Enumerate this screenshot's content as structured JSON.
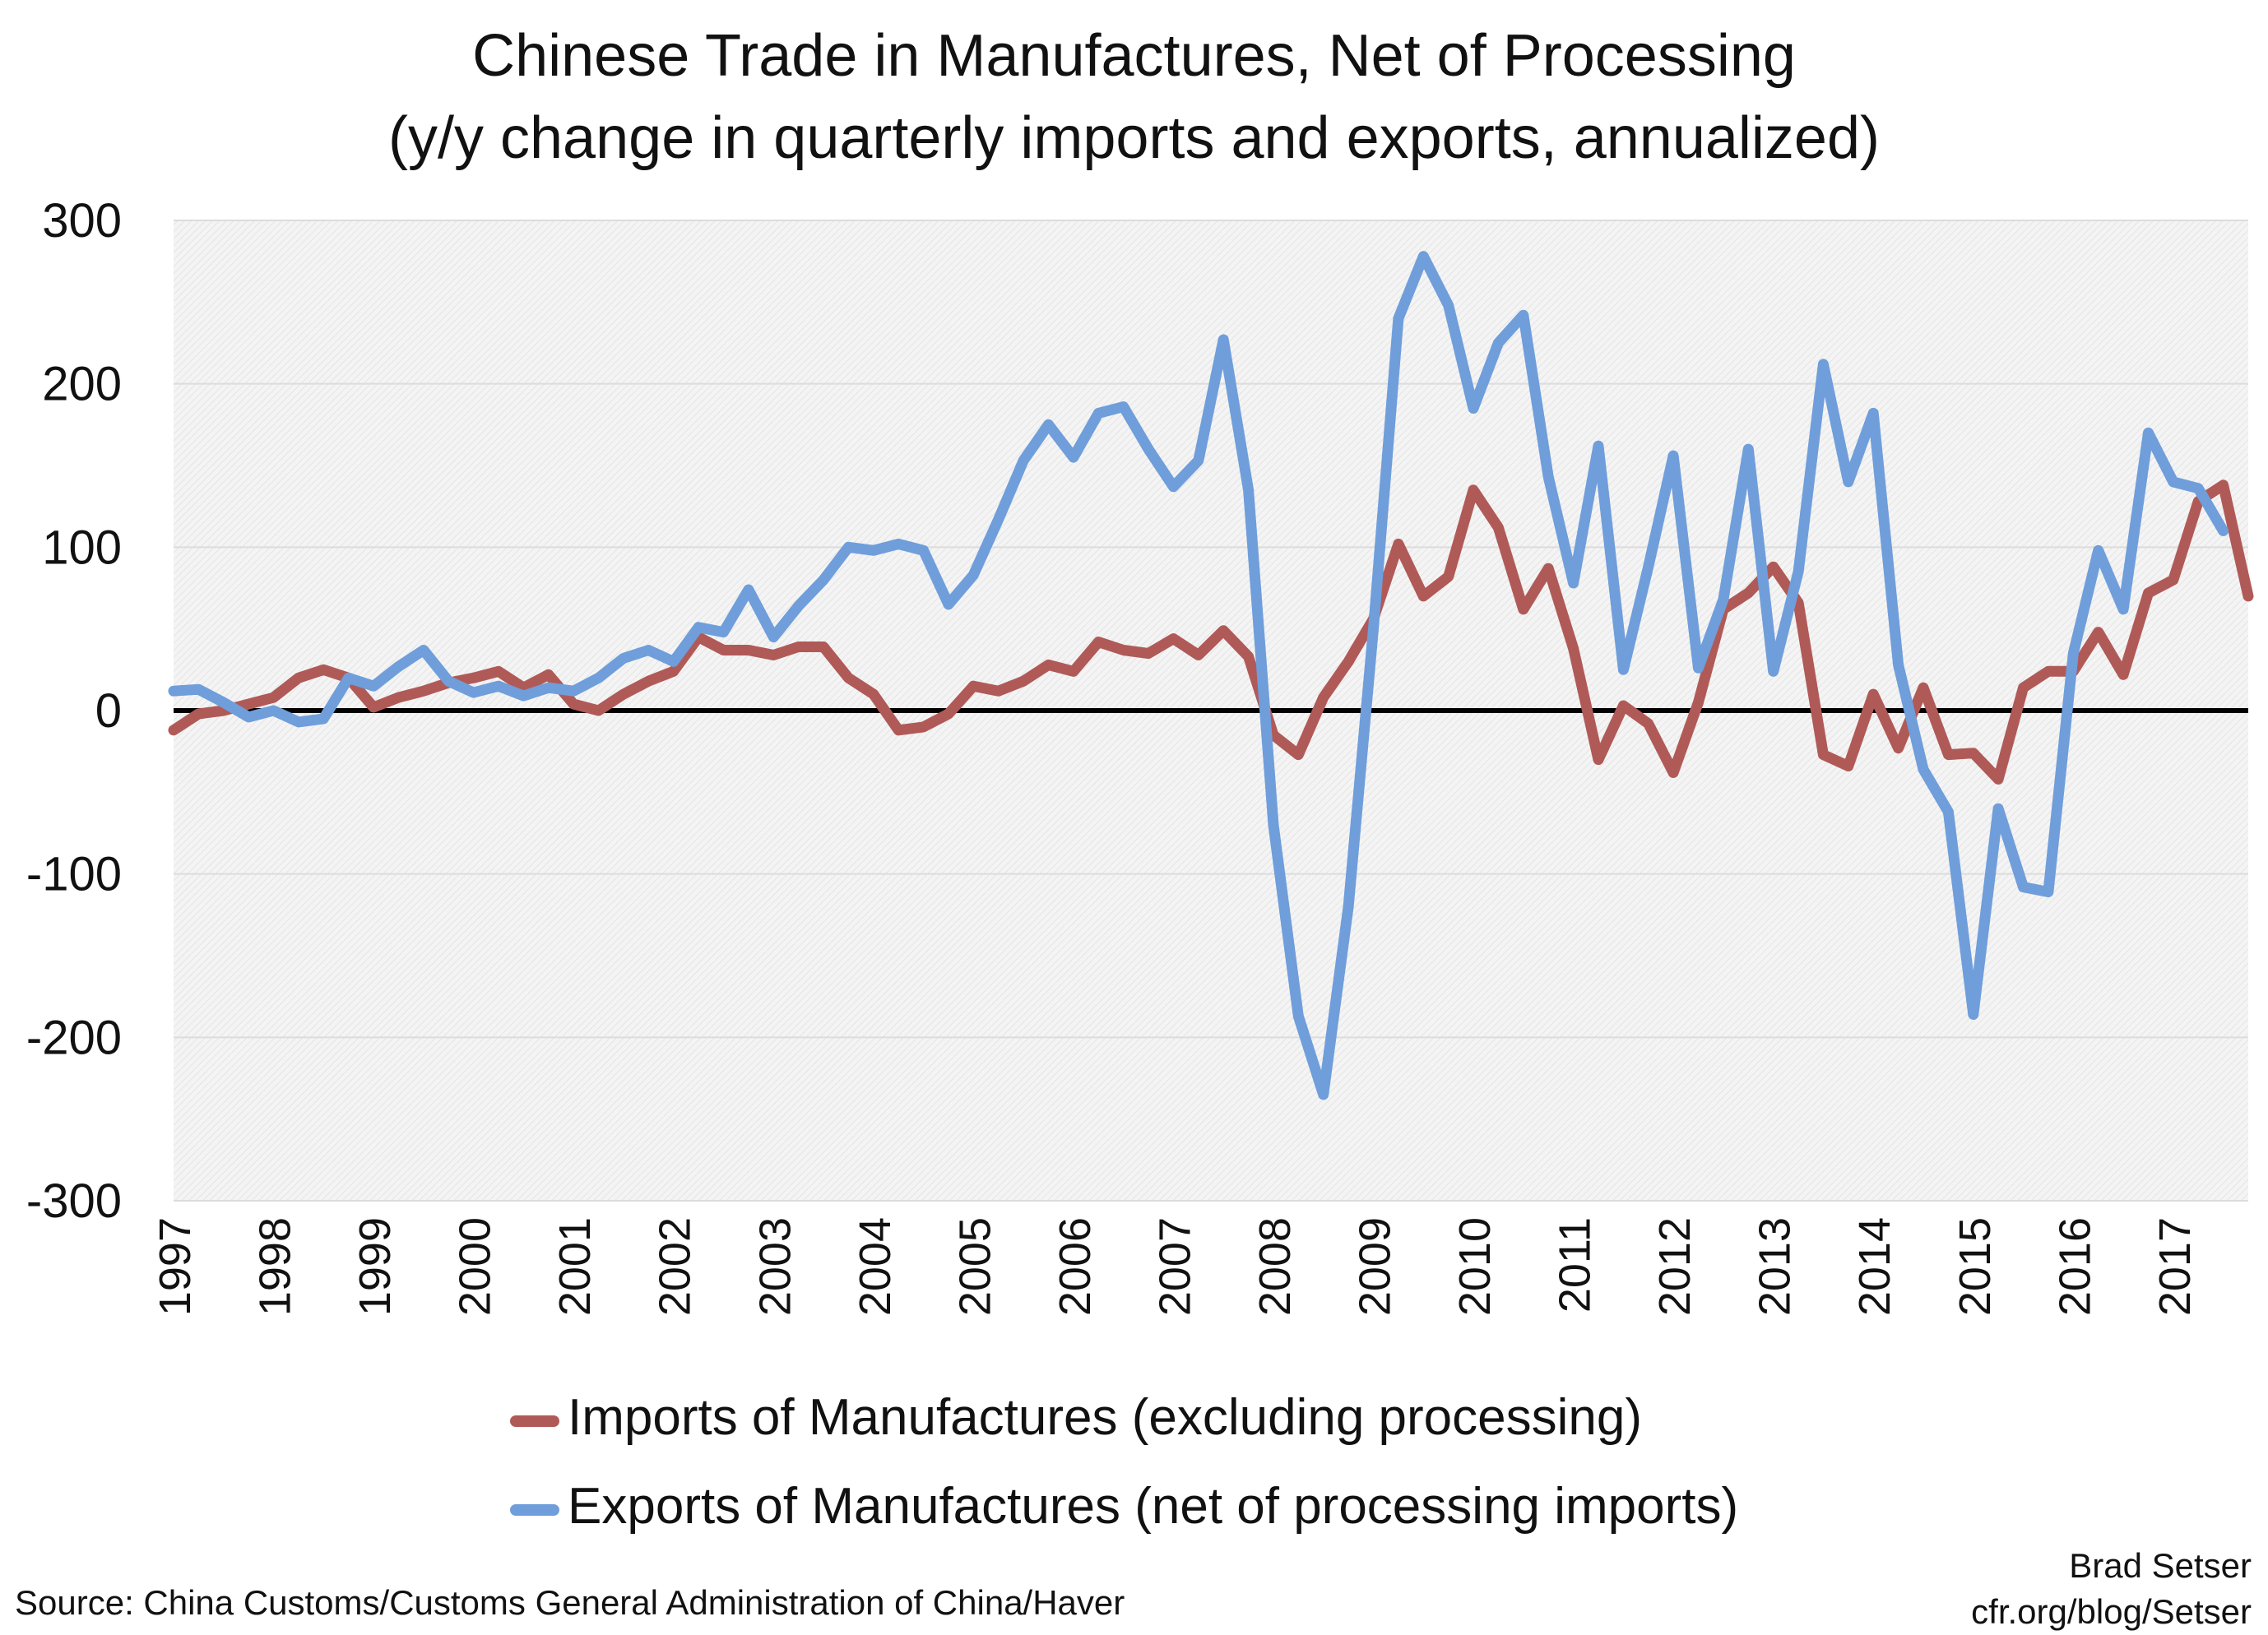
{
  "chart_data": {
    "type": "line",
    "title": "Chinese Trade in Manufactures, Net of Processing",
    "subtitle": "(y/y change in quarterly imports and exports, annualized)",
    "xlabel": "",
    "ylabel": "",
    "ylim": [
      -300,
      300
    ],
    "yticks": [
      "300",
      "200",
      "100",
      "0",
      "-100",
      "-200",
      "-300"
    ],
    "year_labels": [
      "1997",
      "1998",
      "1999",
      "2000",
      "2001",
      "2002",
      "2003",
      "2004",
      "2005",
      "2006",
      "2007",
      "2008",
      "2009",
      "2010",
      "2011",
      "2012",
      "2013",
      "2014",
      "2015",
      "2016",
      "2017"
    ],
    "x_start": "1997 Q1",
    "x_frequency": "quarterly",
    "grid": true,
    "legend_position": "bottom",
    "series": [
      {
        "name": "Imports of Manufactures (excluding processing)",
        "color": "#b05a58",
        "values": [
          -12,
          -2,
          0,
          4,
          8,
          20,
          25,
          20,
          2,
          8,
          12,
          17,
          20,
          24,
          14,
          22,
          4,
          0,
          10,
          18,
          24,
          45,
          37,
          37,
          34,
          39,
          39,
          20,
          10,
          -12,
          -10,
          -2,
          15,
          12,
          18,
          28,
          24,
          42,
          37,
          35,
          44,
          34,
          49,
          33,
          -15,
          -27,
          8,
          30,
          56,
          102,
          70,
          82,
          135,
          112,
          62,
          87,
          38,
          -30,
          3,
          -8,
          -38,
          5,
          62,
          72,
          88,
          66,
          -27,
          -34,
          10,
          -23,
          14,
          -27,
          -26,
          -42,
          14,
          24,
          24,
          48,
          22,
          72,
          80,
          128,
          138,
          70
        ]
      },
      {
        "name": "Exports of Manufactures (net of processing imports)",
        "color": "#6f9edb",
        "values": [
          12,
          13,
          5,
          -4,
          0,
          -7,
          -5,
          20,
          15,
          27,
          37,
          18,
          11,
          15,
          9,
          14,
          12,
          20,
          32,
          37,
          30,
          51,
          48,
          74,
          45,
          64,
          80,
          100,
          98,
          102,
          98,
          65,
          83,
          117,
          153,
          175,
          155,
          182,
          186,
          160,
          137,
          153,
          227,
          135,
          -70,
          -187,
          -235,
          -120,
          50,
          240,
          278,
          248,
          185,
          225,
          242,
          143,
          78,
          162,
          25,
          88,
          156,
          26,
          68,
          160,
          24,
          85,
          212,
          140,
          182,
          28,
          -36,
          -62,
          -186,
          -60,
          -108,
          -111,
          35,
          98,
          62,
          170,
          140,
          136,
          110
        ]
      }
    ]
  },
  "legend": {
    "items": [
      {
        "label": "Imports of Manufactures (excluding processing)"
      },
      {
        "label": "Exports of Manufactures (net of processing imports)"
      }
    ]
  },
  "footer": {
    "source": "Source: China Customs/Customs General Administration of China/Haver",
    "credit_name": "Brad Setser",
    "credit_url": "cfr.org/blog/Setser"
  }
}
